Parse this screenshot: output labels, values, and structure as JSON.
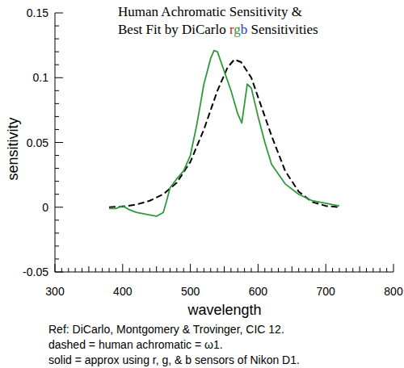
{
  "chart_data": {
    "type": "line",
    "title": [
      "Human Achromatic Sensitivity  &",
      "Best Fit by DiCarlo rgb Sensitivities"
    ],
    "x_label": "wavelength",
    "y_label": "sensitivity",
    "annotations": [
      "Ref: DiCarlo, Montgomery & Trovinger, CIC 12.",
      "dashed = human achromatic = ω1.",
      "solid = approx using r, g, & b sensors of Nikon D1."
    ],
    "xlim": [
      300,
      800
    ],
    "xticks": [
      300,
      400,
      500,
      600,
      700,
      800
    ],
    "ylim": [
      -0.05,
      0.15
    ],
    "yticks": [
      -0.05,
      0,
      0.05,
      0.1,
      0.15
    ],
    "grid": false,
    "series": [
      {
        "name": "human achromatic",
        "color": "#000000",
        "line_style": "dashed",
        "x": [
          380,
          400,
          420,
          440,
          460,
          480,
          500,
          520,
          540,
          555,
          565,
          575,
          590,
          600,
          620,
          640,
          660,
          680,
          700,
          720
        ],
        "values": [
          0,
          0.0005,
          0.002,
          0.005,
          0.01,
          0.019,
          0.035,
          0.06,
          0.09,
          0.108,
          0.114,
          0.112,
          0.1,
          0.085,
          0.055,
          0.028,
          0.012,
          0.004,
          0.001,
          0
        ]
      },
      {
        "name": "approx using r, g, & b sensors",
        "color": "#2e9a3c",
        "line_style": "solid",
        "x": [
          380,
          390,
          400,
          410,
          420,
          440,
          450,
          460,
          465,
          470,
          480,
          490,
          500,
          510,
          520,
          530,
          535,
          540,
          550,
          560,
          570,
          576,
          580,
          584,
          590,
          600,
          610,
          620,
          640,
          660,
          680,
          700,
          720
        ],
        "values": [
          -0.001,
          -0.001,
          0.001,
          -0.002,
          -0.004,
          -0.006,
          -0.007,
          -0.004,
          0.005,
          0.015,
          0.022,
          0.028,
          0.04,
          0.065,
          0.095,
          0.115,
          0.121,
          0.12,
          0.105,
          0.09,
          0.072,
          0.065,
          0.08,
          0.095,
          0.092,
          0.07,
          0.05,
          0.033,
          0.018,
          0.01,
          0.005,
          0.003,
          0.001
        ]
      }
    ]
  }
}
